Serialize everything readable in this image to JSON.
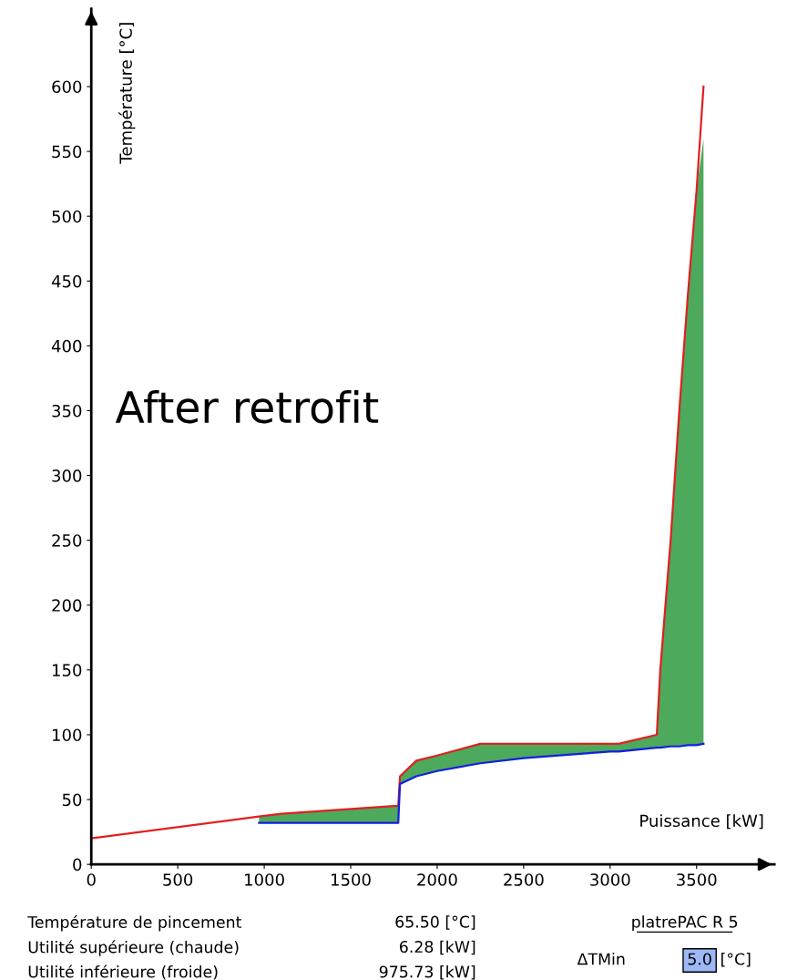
{
  "chart_data": {
    "type": "line",
    "xlabel": "Puissance [kW]",
    "ylabel": "Température [°C]",
    "xlim": [
      0,
      3950
    ],
    "ylim": [
      0,
      660
    ],
    "xticks": [
      0,
      500,
      1000,
      1500,
      2000,
      2500,
      3000,
      3500
    ],
    "yticks": [
      0,
      50,
      100,
      150,
      200,
      250,
      300,
      350,
      400,
      450,
      500,
      550,
      600
    ],
    "grid": false,
    "legend": false,
    "marker": "none",
    "line_style": "solid",
    "series": [
      {
        "color": "#e02020",
        "x": [
          0,
          970,
          1100,
          1750,
          1775,
          1785,
          1880,
          2000,
          2250,
          3050,
          3270,
          3290,
          3350,
          3400,
          3450,
          3500,
          3540
        ],
        "values": [
          20,
          37,
          39,
          45,
          45,
          68,
          80,
          84,
          93,
          93,
          100,
          150,
          250,
          350,
          440,
          520,
          600
        ]
      },
      {
        "color": "#1020e0",
        "x": [
          970,
          1100,
          1500,
          1775,
          1785,
          1880,
          2000,
          2250,
          2500,
          3000,
          3050,
          3270,
          3290,
          3350,
          3400,
          3450,
          3500,
          3540
        ],
        "values": [
          32,
          32,
          32,
          32,
          62,
          68,
          72,
          78,
          82,
          87,
          87,
          90,
          90,
          91,
          91,
          92,
          92,
          93
        ],
        "lower": [
          32,
          32,
          32,
          32,
          62,
          68,
          72,
          78,
          82,
          87,
          87,
          90,
          90,
          91,
          91,
          92,
          92,
          93
        ],
        "upper": [
          37,
          39,
          43,
          45,
          68,
          80,
          84,
          93,
          93,
          93,
          93,
          100,
          150,
          250,
          350,
          440,
          520,
          560
        ]
      }
    ],
    "annotations": [
      "After retrofit",
      "Température de pincement",
      "65.50 [°C]",
      "Utilité supérieure (chaude)",
      "6.28 [kW]",
      "Utilité inférieure (froide)",
      "975.73 [kW]",
      "platrePAC R 5",
      "ΔTMin",
      "5.0",
      "[°C]"
    ]
  }
}
